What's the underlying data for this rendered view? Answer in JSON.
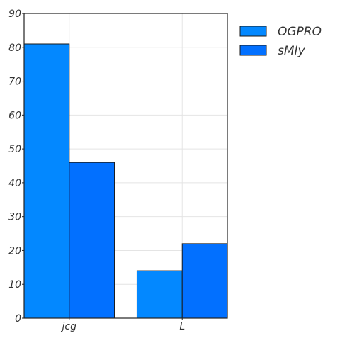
{
  "chart_data": {
    "type": "bar",
    "categories": [
      "jcg",
      "L"
    ],
    "series": [
      {
        "name": "OGPRO",
        "values": [
          81,
          14
        ],
        "color": "#0388ff"
      },
      {
        "name": "sMIy",
        "values": [
          46,
          22
        ],
        "color": "#0270ff"
      }
    ],
    "title": "",
    "xlabel": "",
    "ylabel": "",
    "ylim": [
      0,
      90
    ],
    "yticks": [
      0,
      10,
      20,
      30,
      40,
      50,
      60,
      70,
      80,
      90
    ],
    "grid": true,
    "legend_position": "outside-top-right"
  }
}
